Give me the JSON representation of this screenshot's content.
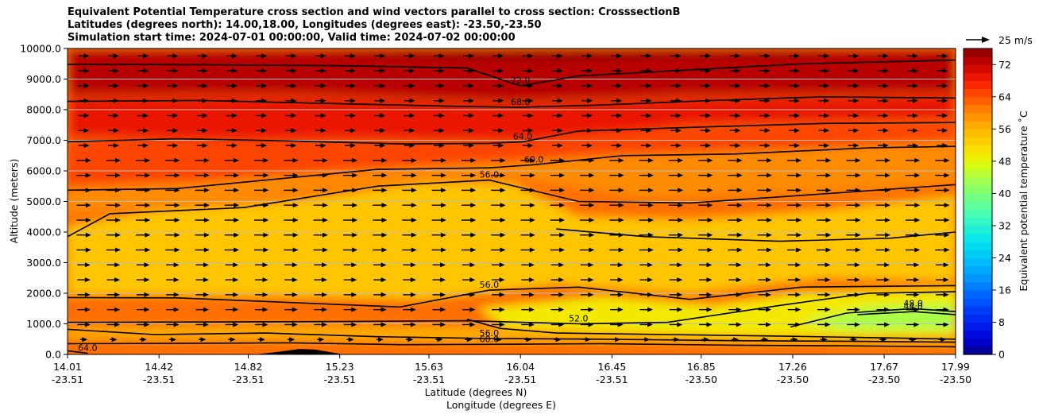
{
  "chart_data": {
    "type": "heatmap",
    "title_lines": [
      "Equivalent Potential Temperature cross section and wind vectors parallel to cross section: CrosssectionB",
      "Latitudes (degrees north): 14.00,18.00, Longitudes (degrees east): -23.50,-23.50",
      "Simulation start time: 2024-07-01 00:00:00, Valid time: 2024-07-02 00:00:00"
    ],
    "ylabel": "Altitude (meters)",
    "xlabel_lat": "Latitude (degrees N)",
    "xlabel_lon": "Longitude (degrees E)",
    "ylim": [
      0,
      10000
    ],
    "y_ticks": [
      "0.0",
      "1000.0",
      "2000.0",
      "3000.0",
      "4000.0",
      "5000.0",
      "6000.0",
      "7000.0",
      "8000.0",
      "9000.0",
      "10000.0"
    ],
    "x_range": [
      14.01,
      17.99
    ],
    "x_ticks": [
      {
        "lat": "14.01",
        "lon": "-23.51",
        "value": 14.01
      },
      {
        "lat": "14.42",
        "lon": "-23.51",
        "value": 14.42
      },
      {
        "lat": "14.82",
        "lon": "-23.51",
        "value": 14.82
      },
      {
        "lat": "15.23",
        "lon": "-23.51",
        "value": 15.23
      },
      {
        "lat": "15.63",
        "lon": "-23.51",
        "value": 15.63
      },
      {
        "lat": "16.04",
        "lon": "-23.51",
        "value": 16.04
      },
      {
        "lat": "16.45",
        "lon": "-23.51",
        "value": 16.45
      },
      {
        "lat": "16.85",
        "lon": "-23.50",
        "value": 16.85
      },
      {
        "lat": "17.26",
        "lon": "-23.50",
        "value": 17.26
      },
      {
        "lat": "17.67",
        "lon": "-23.50",
        "value": 17.67
      },
      {
        "lat": "17.99",
        "lon": "-23.50",
        "value": 17.99
      }
    ],
    "colorbar": {
      "label": "Equivalent potential temperature ˚C",
      "min": 0,
      "max": 76,
      "step": 2,
      "ticks": [
        "0",
        "8",
        "16",
        "24",
        "32",
        "40",
        "48",
        "56",
        "64",
        "72"
      ]
    },
    "quiver_key": {
      "label": "25 m/s",
      "speed": 25
    },
    "contours": [
      {
        "value": 72.0,
        "label": "72.0",
        "points": [
          [
            14.01,
            9480
          ],
          [
            14.6,
            9470
          ],
          [
            15.2,
            9440
          ],
          [
            15.8,
            9360
          ],
          [
            16.04,
            8780
          ],
          [
            16.3,
            9100
          ],
          [
            16.8,
            9300
          ],
          [
            17.3,
            9500
          ],
          [
            17.99,
            9620
          ]
        ]
      },
      {
        "value": 68.0,
        "label": "68.0",
        "points": [
          [
            14.01,
            8270
          ],
          [
            14.6,
            8300
          ],
          [
            15.2,
            8200
          ],
          [
            15.8,
            8100
          ],
          [
            16.04,
            8080
          ],
          [
            16.4,
            8150
          ],
          [
            16.9,
            8300
          ],
          [
            17.4,
            8420
          ],
          [
            17.99,
            8380
          ]
        ]
      },
      {
        "value": 64.0,
        "label": "64.0",
        "points": [
          [
            14.01,
            6950
          ],
          [
            14.5,
            7050
          ],
          [
            15.0,
            6980
          ],
          [
            15.5,
            6880
          ],
          [
            15.9,
            6900
          ],
          [
            16.05,
            6950
          ],
          [
            16.3,
            7300
          ],
          [
            16.8,
            7420
          ],
          [
            17.4,
            7550
          ],
          [
            17.99,
            7580
          ]
        ]
      },
      {
        "value": 60.0,
        "label": "60.0",
        "points": [
          [
            14.01,
            5370
          ],
          [
            14.5,
            5420
          ],
          [
            14.9,
            5700
          ],
          [
            15.4,
            6050
          ],
          [
            15.9,
            6100
          ],
          [
            16.1,
            6200
          ],
          [
            16.5,
            6500
          ],
          [
            17.0,
            6550
          ],
          [
            17.6,
            6750
          ],
          [
            17.99,
            6800
          ]
        ]
      },
      {
        "value": 56.0,
        "label": "56.0",
        "points": [
          [
            14.01,
            3850
          ],
          [
            14.2,
            4600
          ],
          [
            14.8,
            4800
          ],
          [
            15.4,
            5500
          ],
          [
            15.9,
            5700
          ],
          [
            16.3,
            5000
          ],
          [
            16.8,
            4950
          ],
          [
            17.4,
            5250
          ],
          [
            17.99,
            5550
          ]
        ]
      },
      {
        "value": 56.0,
        "label": "",
        "points": [
          [
            16.2,
            4100
          ],
          [
            16.6,
            3850
          ],
          [
            17.2,
            3700
          ],
          [
            17.7,
            3800
          ],
          [
            17.99,
            4000
          ]
        ]
      },
      {
        "value": 56.0,
        "label": "56.0",
        "points": [
          [
            14.01,
            1860
          ],
          [
            14.5,
            1850
          ],
          [
            15.0,
            1700
          ],
          [
            15.5,
            1550
          ],
          [
            15.9,
            2100
          ],
          [
            16.3,
            2200
          ],
          [
            16.8,
            1800
          ],
          [
            17.3,
            2200
          ],
          [
            17.99,
            2250
          ]
        ]
      },
      {
        "value": 52.0,
        "label": "52.0",
        "points": [
          [
            14.01,
            1050
          ],
          [
            14.6,
            1060
          ],
          [
            15.3,
            1080
          ],
          [
            15.8,
            1100
          ],
          [
            16.3,
            1000
          ],
          [
            16.7,
            1050
          ],
          [
            17.2,
            1600
          ],
          [
            17.6,
            2000
          ],
          [
            17.99,
            2050
          ]
        ]
      },
      {
        "value": 48.0,
        "label": "48.0",
        "points": [
          [
            17.25,
            900
          ],
          [
            17.5,
            1350
          ],
          [
            17.8,
            1500
          ],
          [
            17.99,
            1400
          ]
        ]
      },
      {
        "value": 44.0,
        "label": "44.0",
        "points": [
          [
            17.55,
            1300
          ],
          [
            17.8,
            1400
          ],
          [
            17.99,
            1300
          ]
        ]
      },
      {
        "value": 52.0,
        "label": "",
        "points": [
          [
            15.8,
            1150
          ],
          [
            15.95,
            850
          ],
          [
            16.2,
            700
          ],
          [
            16.7,
            650
          ],
          [
            17.2,
            600
          ],
          [
            17.6,
            550
          ],
          [
            17.99,
            500
          ]
        ]
      },
      {
        "value": 56.0,
        "label": "56.0",
        "points": [
          [
            14.01,
            820
          ],
          [
            14.4,
            650
          ],
          [
            14.9,
            700
          ],
          [
            15.4,
            580
          ],
          [
            15.9,
            520
          ],
          [
            16.4,
            500
          ],
          [
            17.0,
            450
          ],
          [
            17.5,
            430
          ],
          [
            17.99,
            400
          ]
        ]
      },
      {
        "value": 60.0,
        "label": "60.0",
        "points": [
          [
            14.01,
            350
          ],
          [
            14.5,
            360
          ],
          [
            15.0,
            380
          ],
          [
            15.5,
            320
          ],
          [
            15.9,
            330
          ],
          [
            16.4,
            350
          ],
          [
            17.0,
            300
          ],
          [
            17.5,
            280
          ],
          [
            17.99,
            250
          ]
        ]
      },
      {
        "value": 64.0,
        "label": "64.0",
        "points": [
          [
            14.01,
            120
          ],
          [
            14.1,
            40
          ]
        ]
      }
    ]
  }
}
